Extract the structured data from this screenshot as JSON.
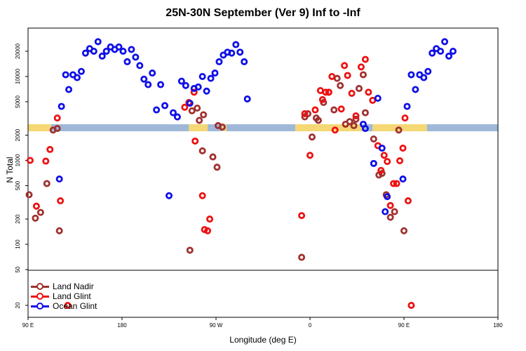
{
  "chart_data": {
    "type": "scatter",
    "title": "25N-30N September (Ver 9)   Inf to -Inf",
    "xlabel": "Longitude (deg E)",
    "ylabel": "N Total",
    "y_scale": "log",
    "x_range": [
      "90 E",
      "180 E (wrapped)"
    ],
    "x_ticks": [
      {
        "lon": 90,
        "label": "90 E"
      },
      {
        "lon": 180,
        "label": "180"
      },
      {
        "lon": 270,
        "label": "90 W"
      },
      {
        "lon": 360,
        "label": "0"
      },
      {
        "lon": 450,
        "label": "90 E"
      },
      {
        "lon": 540,
        "label": "180"
      }
    ],
    "y_ticks_upper": [
      {
        "value": 20000,
        "label": "20000"
      },
      {
        "value": 10000,
        "label": "10000"
      },
      {
        "value": 5000,
        "label": "5000"
      },
      {
        "value": 2000,
        "label": "2000"
      },
      {
        "value": 1000,
        "label": "1000"
      },
      {
        "value": 500,
        "label": "500"
      },
      {
        "value": 200,
        "label": "200"
      },
      {
        "value": 100,
        "label": "100"
      },
      {
        "value": 50,
        "label": "50"
      }
    ],
    "y_ticks_lower": [
      {
        "value": 20,
        "label": "20"
      }
    ],
    "landmask_colors": {
      "land": "#f5d774",
      "ocean": "#9fb8d8"
    },
    "landmask": [
      {
        "from": 90,
        "to": 112,
        "type": "land"
      },
      {
        "from": 112,
        "to": 244,
        "type": "ocean"
      },
      {
        "from": 244,
        "to": 262,
        "type": "land"
      },
      {
        "from": 262,
        "to": 276,
        "type": "ocean"
      },
      {
        "from": 276,
        "to": 280,
        "type": "land"
      },
      {
        "from": 280,
        "to": 346,
        "type": "ocean"
      },
      {
        "from": 346,
        "to": 410,
        "type": "land"
      },
      {
        "from": 410,
        "to": 420,
        "type": "ocean"
      },
      {
        "from": 420,
        "to": 472,
        "type": "land"
      },
      {
        "from": 472,
        "to": 540,
        "type": "ocean"
      }
    ],
    "series": [
      {
        "name": "Land Nadir",
        "color": "#a0302e",
        "points": [
          [
            91,
            390
          ],
          [
            97,
            205
          ],
          [
            102,
            240
          ],
          [
            108,
            530
          ],
          [
            114,
            2300
          ],
          [
            118,
            2400
          ],
          [
            120,
            145
          ],
          [
            245,
            85
          ],
          [
            247,
            3900
          ],
          [
            252,
            4200
          ],
          [
            254,
            3000
          ],
          [
            257,
            1300
          ],
          [
            258,
            3500
          ],
          [
            267,
            1100
          ],
          [
            271,
            830
          ],
          [
            272,
            2600
          ],
          [
            276,
            2500
          ],
          [
            352,
            70
          ],
          [
            355,
            3300
          ],
          [
            358,
            3600
          ],
          [
            362,
            1900
          ],
          [
            366,
            3200
          ],
          [
            368,
            3000
          ],
          [
            373,
            4900
          ],
          [
            378,
            6500
          ],
          [
            383,
            4000
          ],
          [
            386,
            9500
          ],
          [
            389,
            7800
          ],
          [
            394,
            2700
          ],
          [
            398,
            2900
          ],
          [
            402,
            2600
          ],
          [
            404,
            3100
          ],
          [
            407,
            7200
          ],
          [
            411,
            10500
          ],
          [
            413,
            3700
          ],
          [
            421,
            1800
          ],
          [
            426,
            670
          ],
          [
            429,
            700
          ],
          [
            433,
            390
          ],
          [
            437,
            210
          ],
          [
            441,
            245
          ],
          [
            445,
            2300
          ],
          [
            450,
            145
          ]
        ]
      },
      {
        "name": "Land Glint",
        "color": "#ee1111",
        "points": [
          [
            92,
            1000
          ],
          [
            98,
            285
          ],
          [
            107,
            980
          ],
          [
            111,
            1350
          ],
          [
            118,
            3200
          ],
          [
            121,
            330
          ],
          [
            128,
            20
          ],
          [
            240,
            4300
          ],
          [
            244,
            4900
          ],
          [
            249,
            6500
          ],
          [
            250,
            1700
          ],
          [
            257,
            380
          ],
          [
            259,
            150
          ],
          [
            262,
            145
          ],
          [
            264,
            200
          ],
          [
            352,
            220
          ],
          [
            355,
            3600
          ],
          [
            360,
            1150
          ],
          [
            365,
            4000
          ],
          [
            370,
            6800
          ],
          [
            372,
            5300
          ],
          [
            375,
            6500
          ],
          [
            378,
            6500
          ],
          [
            381,
            10000
          ],
          [
            384,
            2300
          ],
          [
            390,
            4100
          ],
          [
            393,
            13500
          ],
          [
            396,
            10300
          ],
          [
            400,
            6300
          ],
          [
            404,
            3400
          ],
          [
            409,
            13000
          ],
          [
            413,
            16000
          ],
          [
            416,
            6500
          ],
          [
            420,
            5200
          ],
          [
            425,
            1500
          ],
          [
            428,
            760
          ],
          [
            431,
            1150
          ],
          [
            434,
            970
          ],
          [
            437,
            290
          ],
          [
            440,
            530
          ],
          [
            443,
            530
          ],
          [
            446,
            990
          ],
          [
            449,
            1400
          ],
          [
            451,
            3200
          ],
          [
            454,
            330
          ],
          [
            457,
            20
          ]
        ]
      },
      {
        "name": "Ocean Glint",
        "color": "#0f0fe8",
        "points": [
          [
            120,
            600
          ],
          [
            122,
            4400
          ],
          [
            126,
            10500
          ],
          [
            129,
            7000
          ],
          [
            133,
            10500
          ],
          [
            137,
            9700
          ],
          [
            141,
            11500
          ],
          [
            145,
            19000
          ],
          [
            149,
            21500
          ],
          [
            153,
            20000
          ],
          [
            157,
            26000
          ],
          [
            161,
            17500
          ],
          [
            165,
            20000
          ],
          [
            169,
            22500
          ],
          [
            173,
            21000
          ],
          [
            177,
            22500
          ],
          [
            181,
            20000
          ],
          [
            185,
            15000
          ],
          [
            189,
            21000
          ],
          [
            193,
            17000
          ],
          [
            197,
            13500
          ],
          [
            201,
            9300
          ],
          [
            205,
            8000
          ],
          [
            209,
            11000
          ],
          [
            213,
            4000
          ],
          [
            217,
            8000
          ],
          [
            221,
            4500
          ],
          [
            225,
            380
          ],
          [
            229,
            3700
          ],
          [
            233,
            3300
          ],
          [
            237,
            8800
          ],
          [
            241,
            7800
          ],
          [
            245,
            4800
          ],
          [
            249,
            7200
          ],
          [
            253,
            7500
          ],
          [
            257,
            10000
          ],
          [
            261,
            6700
          ],
          [
            265,
            9500
          ],
          [
            269,
            11000
          ],
          [
            273,
            15000
          ],
          [
            277,
            18000
          ],
          [
            281,
            19500
          ],
          [
            285,
            19000
          ],
          [
            289,
            24000
          ],
          [
            293,
            19500
          ],
          [
            297,
            15000
          ],
          [
            300,
            5400
          ],
          [
            411,
            2700
          ],
          [
            413,
            2400
          ],
          [
            421,
            920
          ],
          [
            425,
            5500
          ],
          [
            429,
            1400
          ],
          [
            432,
            245
          ],
          [
            434,
            370
          ],
          [
            449,
            600
          ],
          [
            453,
            4400
          ],
          [
            457,
            10500
          ],
          [
            461,
            7000
          ],
          [
            465,
            10500
          ],
          [
            469,
            9700
          ],
          [
            473,
            11500
          ],
          [
            477,
            19000
          ],
          [
            481,
            21500
          ],
          [
            485,
            20000
          ],
          [
            489,
            26000
          ],
          [
            493,
            17500
          ],
          [
            497,
            20000
          ]
        ]
      }
    ]
  }
}
